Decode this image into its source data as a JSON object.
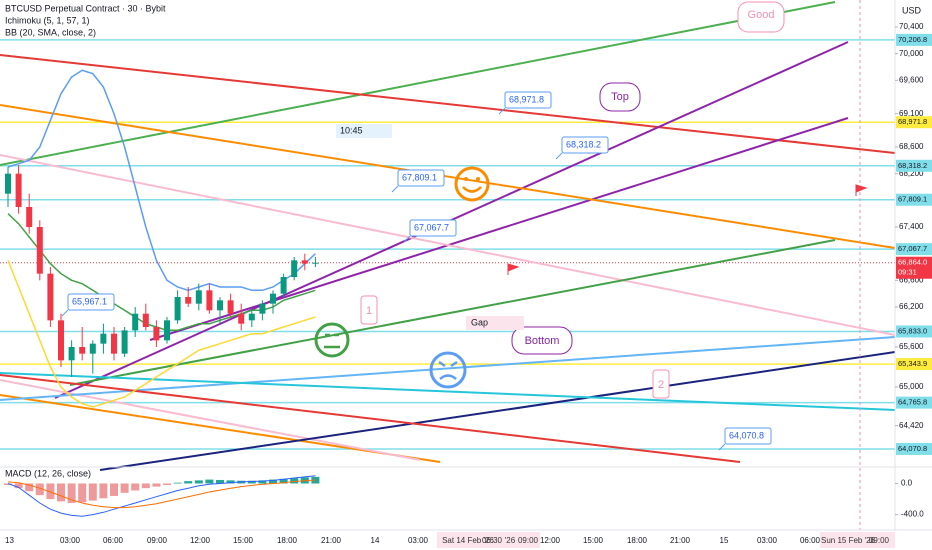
{
  "header": {
    "symbol": "BTCUSD Perpetual Contract · 30 · Bybit",
    "ichimoku": "Ichimoku (5, 1, 57, 1)",
    "bb": "BB (20, SMA, close, 2)",
    "currency": "USD"
  },
  "chart_data": {
    "type": "candlestick",
    "up_color": "#089981",
    "down_color": "#f23645",
    "ylim": [
      63830,
      70805
    ],
    "yticks": [
      {
        "value": 70400,
        "label": "70,400"
      },
      {
        "value": 70000,
        "label": "70,000"
      },
      {
        "value": 69600,
        "label": "69,600"
      },
      {
        "value": 69100,
        "label": "69,100"
      },
      {
        "value": 68600,
        "label": "68,600"
      },
      {
        "value": 68200,
        "label": "68,200"
      },
      {
        "value": 67400,
        "label": "67,400"
      },
      {
        "value": 66600,
        "label": "66,600"
      },
      {
        "value": 66200,
        "label": "66,200"
      },
      {
        "value": 65600,
        "label": "65,600"
      },
      {
        "value": 65000,
        "label": "65,000"
      },
      {
        "value": 64420,
        "label": "64,420"
      }
    ],
    "candles": [
      {
        "o": 67900,
        "h": 68300,
        "l": 67700,
        "c": 68200
      },
      {
        "o": 68200,
        "h": 68330,
        "l": 67600,
        "c": 67700
      },
      {
        "o": 67700,
        "h": 67900,
        "l": 67300,
        "c": 67400
      },
      {
        "o": 67400,
        "h": 67500,
        "l": 66600,
        "c": 66700
      },
      {
        "o": 66700,
        "h": 66800,
        "l": 65900,
        "c": 66000
      },
      {
        "o": 66000,
        "h": 66100,
        "l": 65300,
        "c": 65400
      },
      {
        "o": 65400,
        "h": 65700,
        "l": 65150,
        "c": 65600
      },
      {
        "o": 65600,
        "h": 65900,
        "l": 65400,
        "c": 65500
      },
      {
        "o": 65500,
        "h": 65700,
        "l": 65200,
        "c": 65650
      },
      {
        "o": 65650,
        "h": 65950,
        "l": 65500,
        "c": 65800
      },
      {
        "o": 65800,
        "h": 65900,
        "l": 65400,
        "c": 65500
      },
      {
        "o": 65500,
        "h": 65900,
        "l": 65450,
        "c": 65850
      },
      {
        "o": 65850,
        "h": 66200,
        "l": 65750,
        "c": 66100
      },
      {
        "o": 66100,
        "h": 66250,
        "l": 65850,
        "c": 65900
      },
      {
        "o": 65900,
        "h": 66000,
        "l": 65600,
        "c": 65700
      },
      {
        "o": 65700,
        "h": 66050,
        "l": 65650,
        "c": 66000
      },
      {
        "o": 66000,
        "h": 66450,
        "l": 65950,
        "c": 66350
      },
      {
        "o": 66350,
        "h": 66500,
        "l": 66200,
        "c": 66250
      },
      {
        "o": 66250,
        "h": 66550,
        "l": 66150,
        "c": 66450
      },
      {
        "o": 66450,
        "h": 66550,
        "l": 66100,
        "c": 66150
      },
      {
        "o": 66150,
        "h": 66350,
        "l": 65950,
        "c": 66300
      },
      {
        "o": 66300,
        "h": 66400,
        "l": 66050,
        "c": 66100
      },
      {
        "o": 66100,
        "h": 66250,
        "l": 65850,
        "c": 65950
      },
      {
        "o": 66000,
        "h": 66150,
        "l": 65900,
        "c": 66100
      },
      {
        "o": 66100,
        "h": 66300,
        "l": 66000,
        "c": 66250
      },
      {
        "o": 66250,
        "h": 66450,
        "l": 66100,
        "c": 66400
      },
      {
        "o": 66400,
        "h": 66700,
        "l": 66350,
        "c": 66650
      },
      {
        "o": 66650,
        "h": 66950,
        "l": 66600,
        "c": 66900
      },
      {
        "o": 66900,
        "h": 67000,
        "l": 66750,
        "c": 66850
      },
      {
        "o": 66850,
        "h": 66950,
        "l": 66800,
        "c": 66864
      }
    ],
    "bands": [
      {
        "color": "#5b9cf6",
        "values": [
          68300,
          68350,
          68400,
          68600,
          69000,
          69400,
          69650,
          69750,
          69700,
          69500,
          69100,
          68600,
          68000,
          67400,
          66900,
          66600,
          66500,
          66450,
          66500,
          66550,
          66500,
          66500,
          66500,
          66450,
          66450,
          66500,
          66600,
          66700,
          66850,
          67000
        ]
      },
      {
        "color": "#43a047",
        "values": [
          67600,
          67450,
          67250,
          67050,
          66850,
          66700,
          66600,
          66550,
          66450,
          66350,
          66250,
          66150,
          66050,
          65950,
          65900,
          65850,
          65850,
          65900,
          65950,
          65950,
          66000,
          66050,
          66100,
          66150,
          66150,
          66200,
          66300,
          66350,
          66400,
          66450
        ]
      },
      {
        "color": "#fdd835",
        "values": [
          66900,
          66500,
          66100,
          65700,
          65300,
          65000,
          64850,
          64750,
          64700,
          64750,
          64800,
          64850,
          64950,
          65050,
          65150,
          65250,
          65350,
          65450,
          65550,
          65600,
          65650,
          65700,
          65750,
          65800,
          65800,
          65850,
          65900,
          65950,
          66000,
          66050
        ]
      }
    ],
    "levels": [
      {
        "value": 70206.8,
        "label": "70,206.8",
        "color": "#80deea"
      },
      {
        "value": 68971.8,
        "label": "68,971.8",
        "color": "#ffeb3b"
      },
      {
        "value": 68318.2,
        "label": "68,318.2",
        "color": "#80deea"
      },
      {
        "value": 67809.1,
        "label": "67,809.1",
        "color": "#80deea"
      },
      {
        "value": 67067.7,
        "label": "67,067.7",
        "color": "#80deea"
      },
      {
        "value": 65833.0,
        "label": "65,833.0",
        "color": "#80deea"
      },
      {
        "value": 65343.9,
        "label": "65,343.9",
        "color": "#ffeb3b"
      },
      {
        "value": 64765.8,
        "label": "64,765.8",
        "color": "#80deea"
      },
      {
        "value": 64070.8,
        "label": "64,070.8",
        "color": "#80deea"
      }
    ],
    "last_price": {
      "value": 66864.0,
      "label": "66,864.0",
      "countdown": "09:31",
      "color": "#f23645"
    },
    "x_labels": [
      "13",
      "03:00",
      "06:00",
      "09:00",
      "12:00",
      "15:00",
      "18:00",
      "21:00",
      "14",
      "03:00",
      "Sat 14 Feb '26",
      "06:30",
      "'26",
      "09:00",
      "12:00",
      "15:00",
      "18:00",
      "21:00",
      "15",
      "03:00",
      "06:00",
      "Sun 15 Feb '26",
      "09:00"
    ]
  },
  "macd": {
    "title": "MACD (12, 26, close)",
    "ylim": [
      -533,
      173
    ],
    "yticks": [
      {
        "value": 0,
        "label": "0.0"
      },
      {
        "value": -400,
        "label": "-400.0"
      }
    ],
    "up_color": "#26a69a",
    "down_color": "#ef9a9a",
    "histogram": [
      -20,
      -60,
      -100,
      -150,
      -200,
      -230,
      -250,
      -240,
      -220,
      -190,
      -160,
      -120,
      -90,
      -60,
      -40,
      -20,
      10,
      30,
      40,
      50,
      45,
      40,
      35,
      35,
      40,
      50,
      60,
      70,
      80,
      85
    ],
    "lines": [
      {
        "color": "#2962ff",
        "values": [
          0,
          -50,
          -150,
          -250,
          -330,
          -380,
          -410,
          -420,
          -400,
          -370,
          -330,
          -290,
          -250,
          -210,
          -170,
          -130,
          -90,
          -60,
          -30,
          -10,
          0,
          10,
          20,
          25,
          30,
          40,
          55,
          70,
          85,
          100
        ]
      },
      {
        "color": "#ff6d00",
        "values": [
          20,
          10,
          -20,
          -60,
          -110,
          -160,
          -210,
          -250,
          -280,
          -300,
          -310,
          -310,
          -300,
          -280,
          -260,
          -230,
          -200,
          -170,
          -140,
          -110,
          -85,
          -60,
          -40,
          -25,
          -10,
          0,
          10,
          25,
          35,
          45
        ]
      }
    ]
  },
  "annotations": {
    "good": "Good",
    "top": "Top",
    "bottom": "Bottom",
    "gap": "Gap",
    "time_box": "10:45",
    "wave_1": "1",
    "wave_2": "2",
    "callouts": [
      "68,971.8",
      "68,318.2",
      "67,809.1",
      "67,067.7",
      "65,967.1",
      "64,070.8"
    ]
  }
}
